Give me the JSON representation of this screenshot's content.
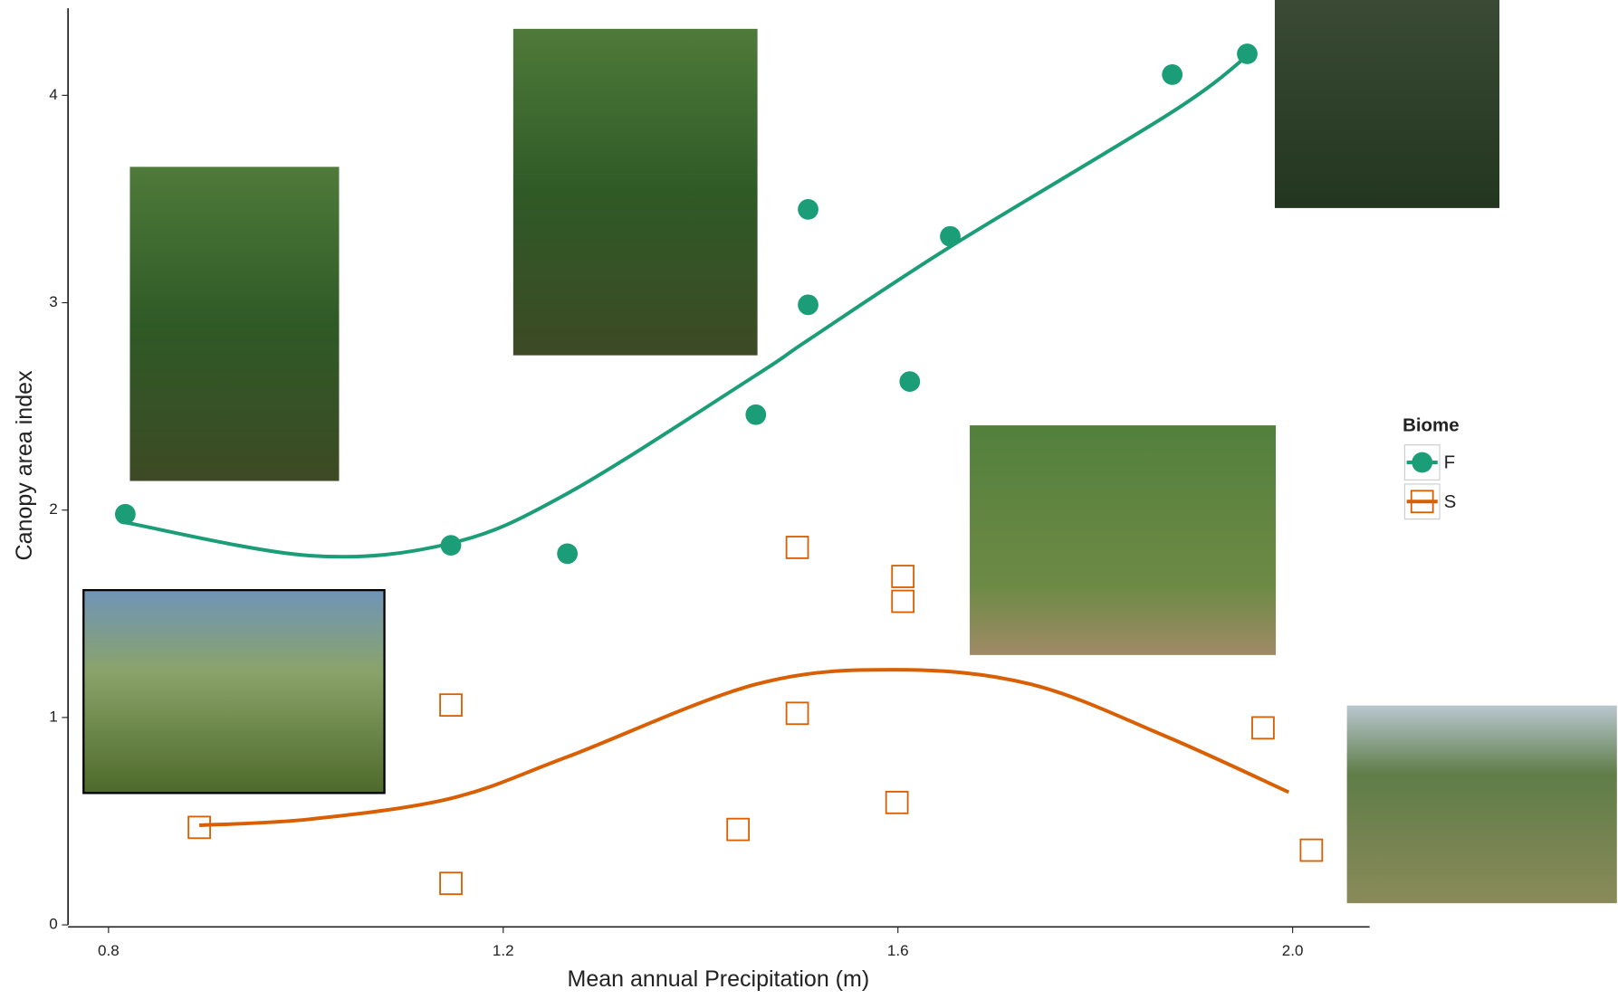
{
  "chart_data": {
    "type": "scatter",
    "xlabel": "Mean annual Precipitation (m)",
    "ylabel": "Canopy area index",
    "xlim": [
      0.759,
      2.078
    ],
    "ylim": [
      0,
      4.42
    ],
    "xticks": [
      0.8,
      1.2,
      1.6,
      {
        "value": 2,
        "label": "2.0"
      }
    ],
    "yticks": [
      0,
      1,
      2,
      3,
      4
    ],
    "legend_title": "Biome",
    "legend": "right",
    "series": [
      {
        "name": "F",
        "color": "#1b9e77",
        "marker": "circle",
        "x": [
          0.817,
          1.147,
          1.265,
          1.456,
          1.509,
          1.509,
          1.612,
          1.653,
          1.878,
          1.954
        ],
        "values": [
          1.98,
          1.83,
          1.79,
          2.46,
          3.45,
          2.99,
          2.62,
          3.32,
          4.1,
          4.2
        ],
        "fit": {
          "x": [
            0.817,
            1.005,
            1.147,
            1.265,
            1.456,
            1.509,
            1.653,
            1.878,
            1.954
          ],
          "y": [
            1.94,
            1.78,
            1.84,
            2.08,
            2.65,
            2.82,
            3.27,
            3.92,
            4.19
          ]
        }
      },
      {
        "name": "S",
        "color": "#d95f02",
        "marker": "square",
        "x": [
          0.892,
          1.147,
          1.147,
          1.438,
          1.498,
          1.498,
          1.599,
          1.605,
          1.605,
          1.97,
          2.019
        ],
        "values": [
          0.47,
          1.06,
          0.2,
          0.46,
          1.82,
          1.02,
          0.59,
          1.68,
          1.56,
          0.95,
          0.36
        ],
        "fit": {
          "x": [
            0.892,
            1.005,
            1.147,
            1.265,
            1.456,
            1.599,
            1.735,
            1.871,
            1.996
          ],
          "y": [
            0.48,
            0.51,
            0.61,
            0.81,
            1.16,
            1.23,
            1.16,
            0.91,
            0.64
          ]
        }
      }
    ]
  }
}
